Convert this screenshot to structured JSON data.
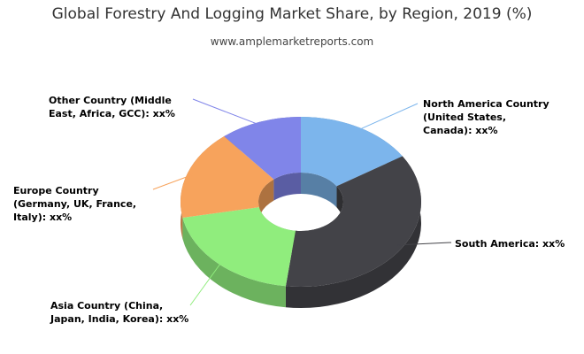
{
  "chart_data": {
    "type": "donut3d",
    "title": "Global Forestry And Logging Market Share, by Region, 2019 (%)",
    "subtitle": "www.amplemarketreports.com",
    "categories": [
      "North America Country (United States, Canada): xx%",
      "South America: xx%",
      "Asia Country (China, Japan, India, Korea): xx%",
      "Europe Country (Germany, UK, France, Italy): xx%",
      "Other Country (Middle East, Africa, GCC): xx%"
    ],
    "values": [
      16,
      36,
      20,
      17,
      11
    ],
    "colors": [
      "#7cb5ec",
      "#434348",
      "#90ed7d",
      "#f7a35c",
      "#8085e9"
    ]
  }
}
